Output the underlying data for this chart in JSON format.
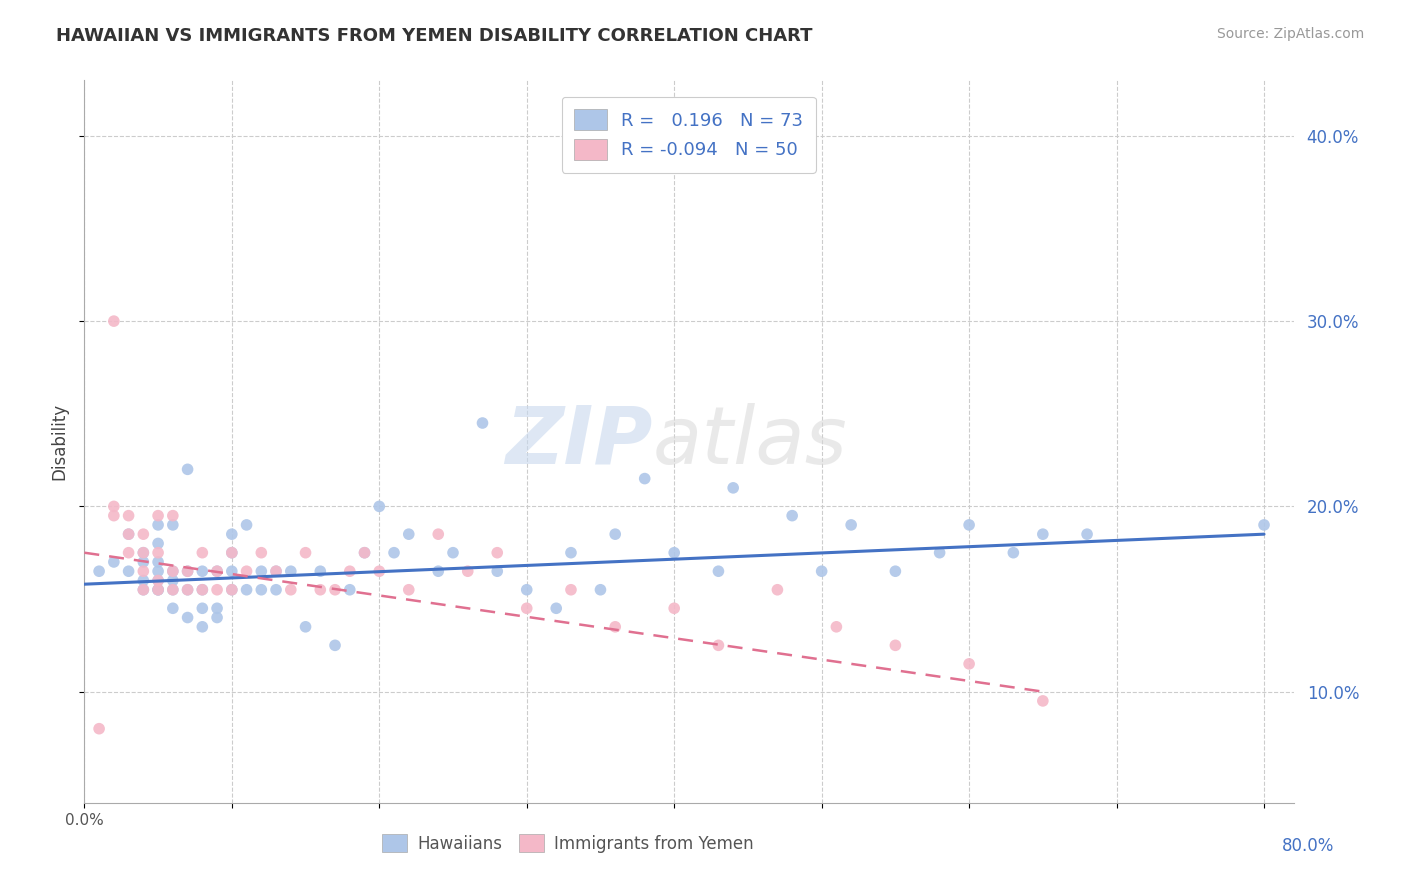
{
  "title": "HAWAIIAN VS IMMIGRANTS FROM YEMEN DISABILITY CORRELATION CHART",
  "source": "Source: ZipAtlas.com",
  "ylabel": "Disability",
  "watermark_zip": "ZIP",
  "watermark_atlas": "atlas",
  "legend_r1_val": "0.196",
  "legend_n1_val": "73",
  "legend_r2_val": "-0.094",
  "legend_n2_val": "50",
  "hawaiian_color": "#aec6e8",
  "yemen_color": "#f4b8c8",
  "hawaiian_line_color": "#4472c4",
  "yemen_line_color": "#e07090",
  "background_color": "#ffffff",
  "grid_color": "#cccccc",
  "xlim": [
    0.0,
    0.82
  ],
  "ylim": [
    0.04,
    0.43
  ],
  "yticks": [
    0.1,
    0.2,
    0.3,
    0.4
  ],
  "ytick_labels": [
    "10.0%",
    "20.0%",
    "30.0%",
    "40.0%"
  ],
  "xtick_positions": [
    0.0,
    0.1,
    0.2,
    0.3,
    0.4,
    0.5,
    0.6,
    0.7,
    0.8
  ],
  "hawaiian_scatter_x": [
    0.01,
    0.02,
    0.03,
    0.03,
    0.04,
    0.04,
    0.04,
    0.04,
    0.05,
    0.05,
    0.05,
    0.05,
    0.05,
    0.05,
    0.05,
    0.06,
    0.06,
    0.06,
    0.06,
    0.06,
    0.07,
    0.07,
    0.07,
    0.07,
    0.08,
    0.08,
    0.08,
    0.08,
    0.09,
    0.09,
    0.09,
    0.1,
    0.1,
    0.1,
    0.1,
    0.11,
    0.11,
    0.12,
    0.12,
    0.13,
    0.13,
    0.14,
    0.15,
    0.16,
    0.17,
    0.18,
    0.19,
    0.2,
    0.21,
    0.22,
    0.24,
    0.25,
    0.27,
    0.28,
    0.3,
    0.32,
    0.33,
    0.35,
    0.36,
    0.38,
    0.4,
    0.43,
    0.44,
    0.48,
    0.5,
    0.52,
    0.55,
    0.58,
    0.6,
    0.63,
    0.65,
    0.68,
    0.8
  ],
  "hawaiian_scatter_y": [
    0.165,
    0.17,
    0.165,
    0.185,
    0.155,
    0.16,
    0.17,
    0.175,
    0.155,
    0.155,
    0.16,
    0.165,
    0.17,
    0.18,
    0.19,
    0.145,
    0.155,
    0.16,
    0.165,
    0.19,
    0.14,
    0.155,
    0.165,
    0.22,
    0.135,
    0.145,
    0.155,
    0.165,
    0.14,
    0.145,
    0.165,
    0.155,
    0.165,
    0.175,
    0.185,
    0.155,
    0.19,
    0.155,
    0.165,
    0.155,
    0.165,
    0.165,
    0.135,
    0.165,
    0.125,
    0.155,
    0.175,
    0.2,
    0.175,
    0.185,
    0.165,
    0.175,
    0.245,
    0.165,
    0.155,
    0.145,
    0.175,
    0.155,
    0.185,
    0.215,
    0.175,
    0.165,
    0.21,
    0.195,
    0.165,
    0.19,
    0.165,
    0.175,
    0.19,
    0.175,
    0.185,
    0.185,
    0.19
  ],
  "yemen_scatter_x": [
    0.01,
    0.02,
    0.02,
    0.02,
    0.03,
    0.03,
    0.03,
    0.04,
    0.04,
    0.04,
    0.04,
    0.05,
    0.05,
    0.05,
    0.05,
    0.06,
    0.06,
    0.06,
    0.07,
    0.07,
    0.08,
    0.08,
    0.09,
    0.09,
    0.1,
    0.1,
    0.11,
    0.12,
    0.13,
    0.14,
    0.15,
    0.16,
    0.17,
    0.18,
    0.19,
    0.2,
    0.22,
    0.24,
    0.26,
    0.28,
    0.3,
    0.33,
    0.36,
    0.4,
    0.43,
    0.47,
    0.51,
    0.55,
    0.6,
    0.65
  ],
  "yemen_scatter_y": [
    0.08,
    0.195,
    0.2,
    0.3,
    0.175,
    0.185,
    0.195,
    0.155,
    0.165,
    0.175,
    0.185,
    0.155,
    0.16,
    0.175,
    0.195,
    0.155,
    0.165,
    0.195,
    0.155,
    0.165,
    0.155,
    0.175,
    0.155,
    0.165,
    0.155,
    0.175,
    0.165,
    0.175,
    0.165,
    0.155,
    0.175,
    0.155,
    0.155,
    0.165,
    0.175,
    0.165,
    0.155,
    0.185,
    0.165,
    0.175,
    0.145,
    0.155,
    0.135,
    0.145,
    0.125,
    0.155,
    0.135,
    0.125,
    0.115,
    0.095
  ],
  "hawaiian_trend_x": [
    0.0,
    0.8
  ],
  "hawaiian_trend_y": [
    0.158,
    0.185
  ],
  "yemen_trend_x": [
    0.0,
    0.65
  ],
  "yemen_trend_y": [
    0.175,
    0.1
  ]
}
